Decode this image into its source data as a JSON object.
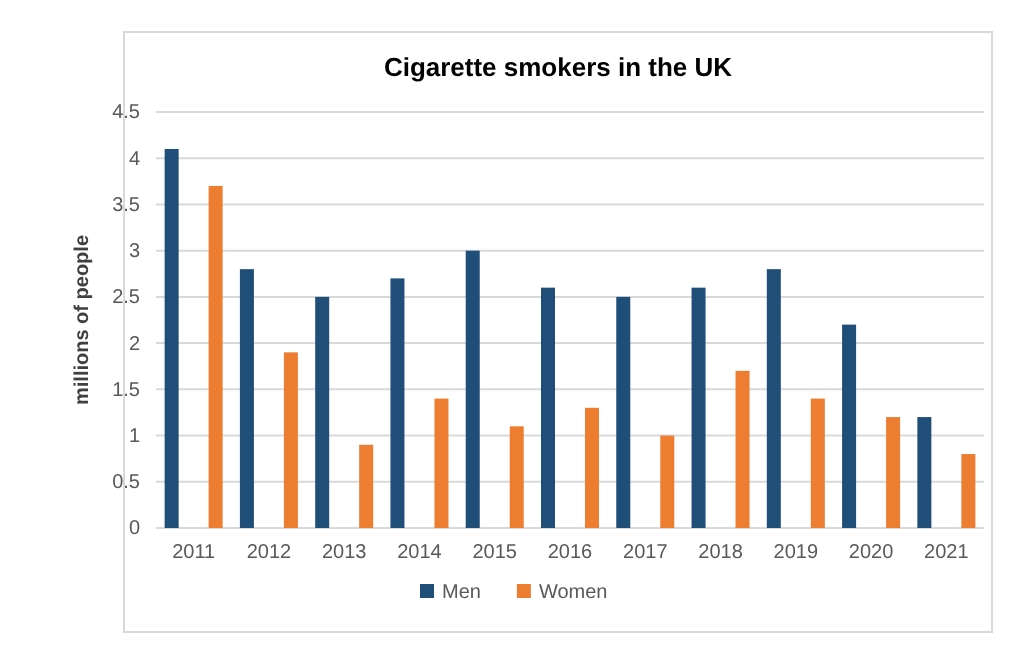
{
  "chart_data": {
    "type": "bar",
    "title": "Cigarette smokers in the UK",
    "ylabel": "millions of people",
    "categories": [
      "2011",
      "2012",
      "2013",
      "2014",
      "2015",
      "2016",
      "2017",
      "2018",
      "2019",
      "2020",
      "2021"
    ],
    "series": [
      {
        "name": "Men",
        "color": "#1f4e79",
        "values": [
          4.1,
          2.8,
          2.5,
          2.7,
          3.0,
          2.6,
          2.5,
          2.6,
          2.8,
          2.2,
          1.2
        ]
      },
      {
        "name": "Women",
        "color": "#ed7d31",
        "values": [
          3.7,
          1.9,
          0.9,
          1.4,
          1.1,
          1.3,
          1.0,
          1.7,
          1.4,
          1.2,
          0.8
        ]
      }
    ],
    "ylim": [
      0,
      4.5
    ],
    "yticks": [
      0,
      0.5,
      1,
      1.5,
      2,
      2.5,
      3,
      3.5,
      4,
      4.5
    ],
    "grid": "y",
    "legend": "bottom"
  }
}
